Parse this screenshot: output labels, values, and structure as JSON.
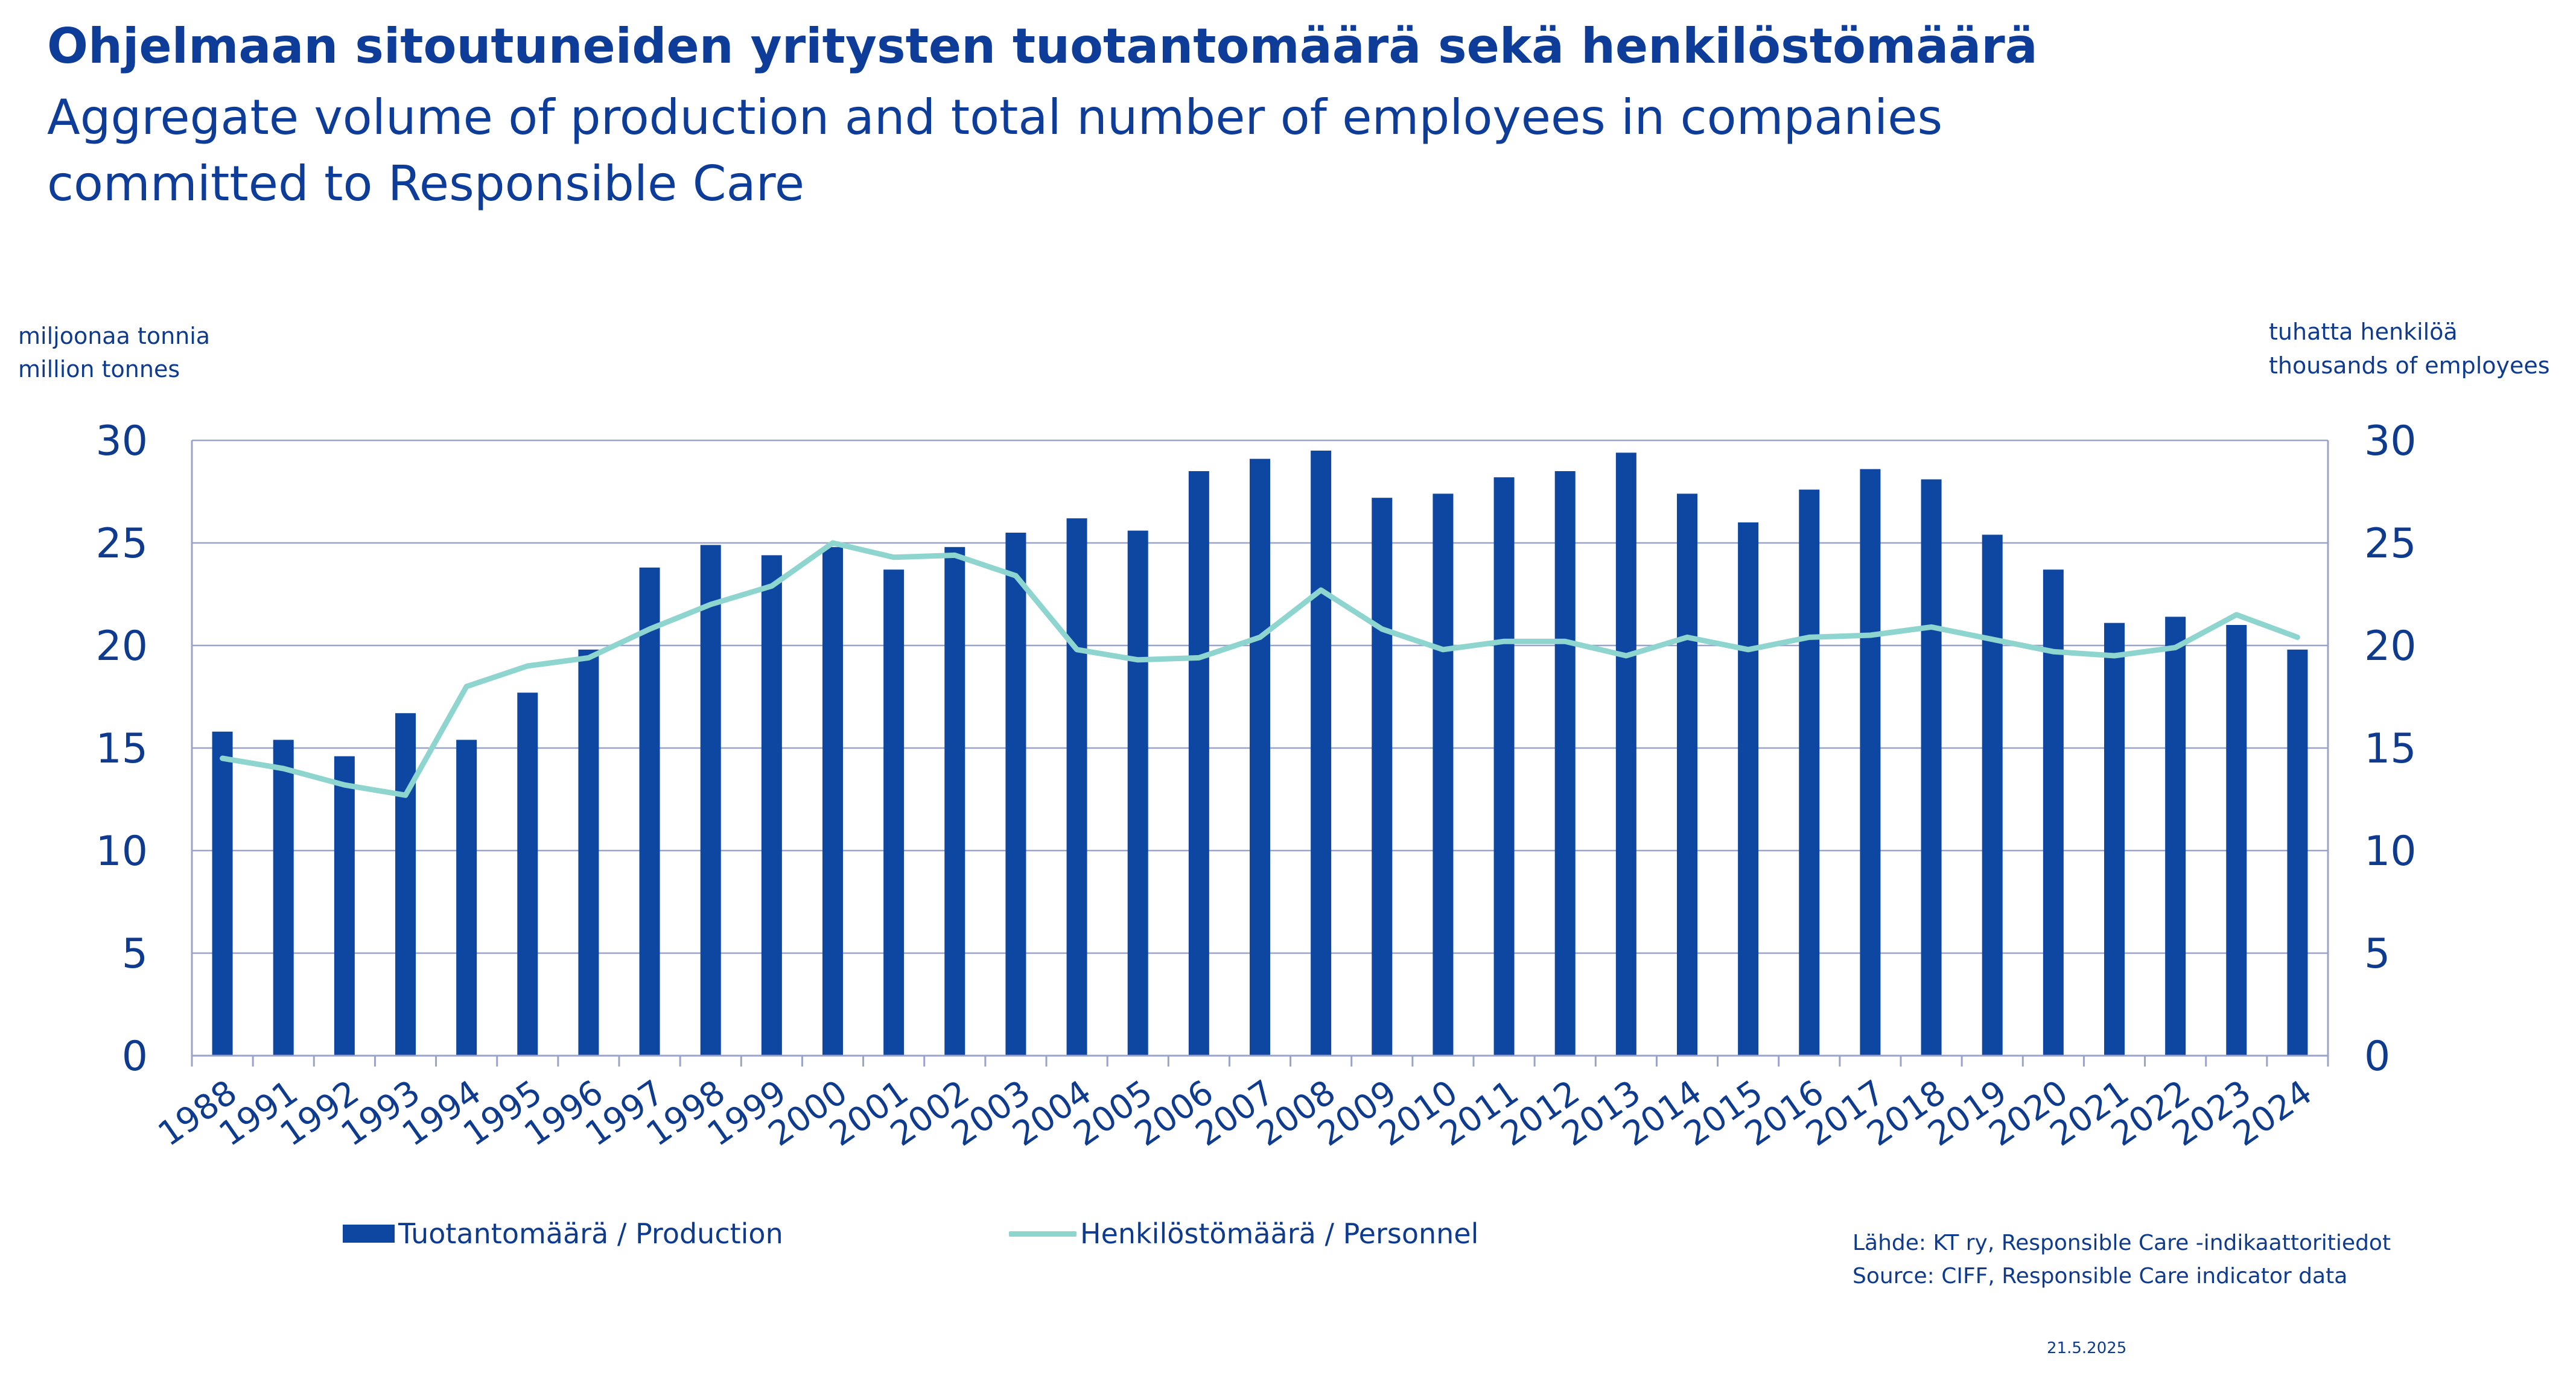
{
  "title": "Ohjelmaan sitoutuneiden yritysten tuotantomäärä sekä henkilöstömäärä",
  "subtitle_line1": "Aggregate volume of production and total number of employees in companies",
  "subtitle_line2": "committed to Responsible Care",
  "colors": {
    "bars": "#0e47a1",
    "line": "#8fd5cf",
    "text": "#0f3b8f",
    "grid": "#9aa3c9"
  },
  "chart_data": {
    "type": "bar",
    "categories": [
      "1988",
      "1991",
      "1992",
      "1993",
      "1994",
      "1995",
      "1996",
      "1997",
      "1998",
      "1999",
      "2000",
      "2001",
      "2002",
      "2003",
      "2004",
      "2005",
      "2006",
      "2007",
      "2008",
      "2009",
      "2010",
      "2011",
      "2012",
      "2013",
      "2014",
      "2015",
      "2016",
      "2017",
      "2018",
      "2019",
      "2020",
      "2021",
      "2022",
      "2023",
      "2024"
    ],
    "ylabel_fi": "miljoonaa tonnia",
    "ylabel_en": "million tonnes",
    "y2label_fi": "tuhatta henkilöä",
    "y2label_en": "thousands of employees",
    "ylim": [
      0,
      30
    ],
    "y2lim": [
      0,
      30
    ],
    "yticks": [
      0,
      5,
      10,
      15,
      20,
      25,
      30
    ],
    "grid": true,
    "legend_position": "bottom",
    "series": [
      {
        "name": "Tuotantomäärä / Production",
        "type": "bar",
        "axis": "left",
        "values": [
          15.8,
          15.4,
          14.6,
          16.7,
          15.4,
          17.7,
          19.8,
          23.8,
          24.9,
          24.4,
          24.8,
          23.7,
          24.8,
          25.5,
          26.2,
          25.6,
          28.5,
          29.1,
          29.5,
          27.2,
          27.4,
          28.2,
          28.5,
          29.4,
          27.4,
          26.0,
          27.6,
          28.6,
          28.1,
          25.4,
          23.7,
          21.1,
          21.4,
          21.0,
          19.8
        ]
      },
      {
        "name": "Henkilöstömäärä / Personnel",
        "type": "line",
        "axis": "right",
        "values": [
          14.5,
          14.0,
          13.2,
          12.7,
          18.0,
          19.0,
          19.4,
          20.8,
          22.0,
          22.9,
          25.0,
          24.3,
          24.4,
          23.4,
          19.8,
          19.3,
          19.4,
          20.4,
          22.7,
          20.8,
          19.8,
          20.2,
          20.2,
          19.5,
          20.4,
          19.8,
          20.4,
          20.5,
          20.9,
          20.3,
          19.7,
          19.5,
          19.9,
          21.5,
          20.4
        ]
      }
    ]
  },
  "source_fi": "Lähde: KT ry, Responsible Care -indikaattoritiedot",
  "source_en": "Source: CIFF, Responsible Care indicator data",
  "date": "21.5.2025"
}
